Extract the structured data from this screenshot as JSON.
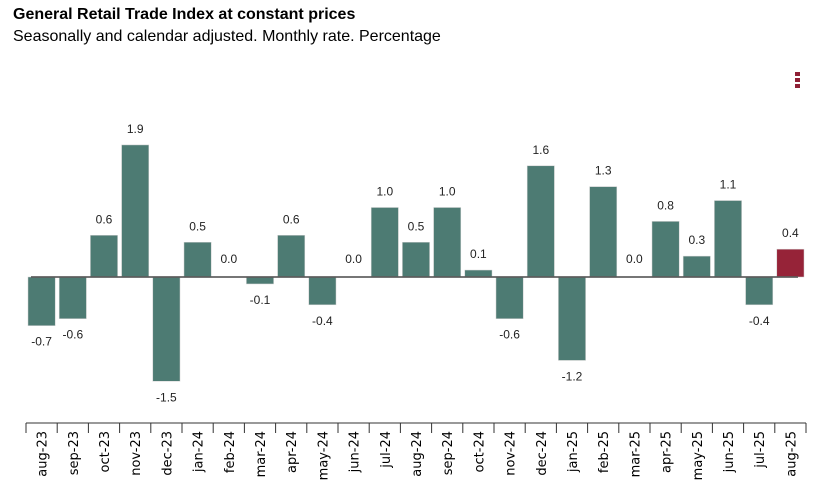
{
  "header": {
    "title": "General Retail Trade Index at constant prices",
    "subtitle": "Seasonally and calendar adjusted. Monthly rate. Percentage"
  },
  "menu": {
    "icon": "vertical-ellipsis-icon",
    "color": "#8f2035"
  },
  "chart_data": {
    "type": "bar",
    "title": "General Retail Trade Index at constant prices",
    "subtitle": "Seasonally and calendar adjusted. Monthly rate. Percentage",
    "xlabel": "",
    "ylabel": "",
    "categories": [
      "aug-23",
      "sep-23",
      "oct-23",
      "nov-23",
      "dec-23",
      "jan-24",
      "feb-24",
      "mar-24",
      "apr-24",
      "may-24",
      "jun-24",
      "jul-24",
      "aug-24",
      "sep-24",
      "oct-24",
      "nov-24",
      "dec-24",
      "jan-25",
      "feb-25",
      "mar-25",
      "apr-25",
      "may-25",
      "jun-25",
      "jul-25",
      "aug-25"
    ],
    "values": [
      -0.7,
      -0.6,
      0.6,
      1.9,
      -1.5,
      0.5,
      0.0,
      -0.1,
      0.6,
      -0.4,
      0.0,
      1.0,
      0.5,
      1.0,
      0.1,
      -0.6,
      1.6,
      -1.2,
      1.3,
      0.0,
      0.8,
      0.3,
      1.1,
      -0.4,
      0.4
    ],
    "value_labels": [
      "-0.7",
      "-0.6",
      "0.6",
      "1.9",
      "-1.5",
      "0.5",
      "0.0",
      "-0.1",
      "0.6",
      "-0.4",
      "0.0",
      "1.0",
      "0.5",
      "1.0",
      "0.1",
      "-0.6",
      "1.6",
      "-1.2",
      "1.3",
      "0.0",
      "0.8",
      "0.3",
      "1.1",
      "-0.4",
      "0.4"
    ],
    "ylim": [
      -2.1,
      2.1
    ],
    "grid": false,
    "legend": "none",
    "colors": {
      "default": "#4d7b73",
      "highlight": "#962338",
      "zero_line": "#555555"
    },
    "highlight_index": 24
  }
}
